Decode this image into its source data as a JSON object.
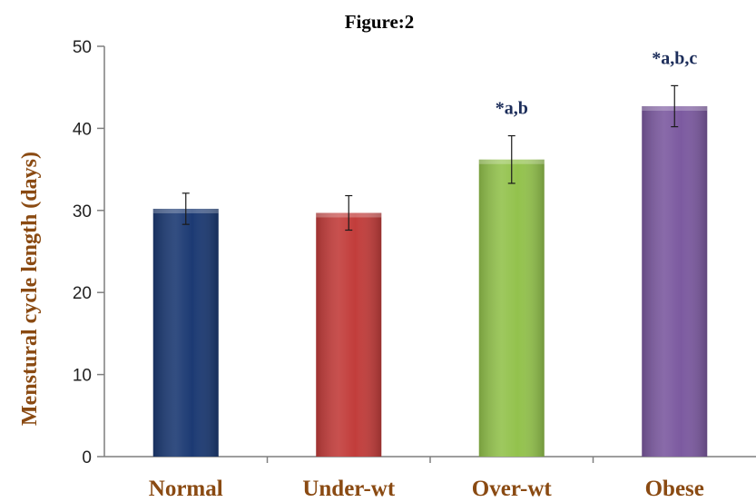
{
  "chart_data": {
    "type": "bar",
    "title": "Figure:2",
    "xlabel": "",
    "ylabel": "Menstural cycle length (days)",
    "categories": [
      "Normal",
      "Under-wt",
      "Over-wt",
      "Obese"
    ],
    "values": [
      30.2,
      29.7,
      36.2,
      42.7
    ],
    "error": [
      1.9,
      2.1,
      2.9,
      2.5
    ],
    "annotations": [
      "",
      "",
      "*a,b",
      "*a,b,c"
    ],
    "bar_colors": [
      "#1c3a73",
      "#c23d3b",
      "#93c24d",
      "#7c5aa0"
    ],
    "ylim": [
      0,
      50
    ],
    "yticks": [
      0,
      10,
      20,
      30,
      40,
      50
    ],
    "grid": false,
    "legend": "none"
  },
  "colors": {
    "axis_label": "#8a4a12",
    "tick_label": "#8a4a12",
    "annotation": "#1c2d5a",
    "axis_line": "#7f7f7f"
  }
}
